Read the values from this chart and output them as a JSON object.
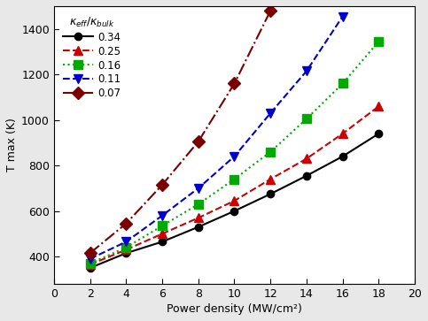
{
  "title": "",
  "xlabel": "Power density (MW/cm²)",
  "ylabel": "T max (K)",
  "xlim": [
    0,
    20
  ],
  "ylim": [
    280,
    1500
  ],
  "xticks": [
    0,
    2,
    4,
    6,
    8,
    10,
    12,
    14,
    16,
    18,
    20
  ],
  "yticks": [
    400,
    600,
    800,
    1000,
    1200,
    1400
  ],
  "series": [
    {
      "label": "0.34",
      "color": "black",
      "linestyle": "-",
      "marker": "o",
      "markerface": "black",
      "x": [
        2,
        4,
        6,
        8,
        10,
        12,
        14,
        16,
        18
      ],
      "y": [
        350,
        415,
        465,
        530,
        600,
        675,
        755,
        840,
        940
      ]
    },
    {
      "label": "0.25",
      "color": "#cc0000",
      "linestyle": "--",
      "marker": "^",
      "markerface": "#cc0000",
      "x": [
        2,
        4,
        6,
        8,
        10,
        12,
        14,
        16,
        18
      ],
      "y": [
        365,
        430,
        500,
        570,
        645,
        740,
        830,
        940,
        1060
      ]
    },
    {
      "label": "0.16",
      "color": "#00aa00",
      "linestyle": ":",
      "marker": "s",
      "markerface": "#00aa00",
      "x": [
        2,
        4,
        6,
        8,
        10,
        12,
        14,
        16,
        18
      ],
      "y": [
        370,
        440,
        535,
        630,
        740,
        860,
        1005,
        1160,
        1345
      ]
    },
    {
      "label": "0.11",
      "color": "#0000cc",
      "linestyle": "--",
      "marker": "v",
      "markerface": "#0000cc",
      "x": [
        2,
        4,
        6,
        8,
        10,
        12,
        14,
        16
      ],
      "y": [
        390,
        465,
        580,
        700,
        840,
        1030,
        1215,
        1455
      ]
    },
    {
      "label": "0.07",
      "color": "#7a0000",
      "linestyle": "-.",
      "marker": "D",
      "markerface": "#7a0000",
      "x": [
        2,
        4,
        6,
        8,
        10,
        12
      ],
      "y": [
        415,
        545,
        715,
        905,
        1160,
        1480
      ]
    }
  ],
  "legend_title": "κ_eff/κ_bulk",
  "legend_loc": "upper left",
  "figure_facecolor": "#e8e8e8",
  "axes_facecolor": "white"
}
